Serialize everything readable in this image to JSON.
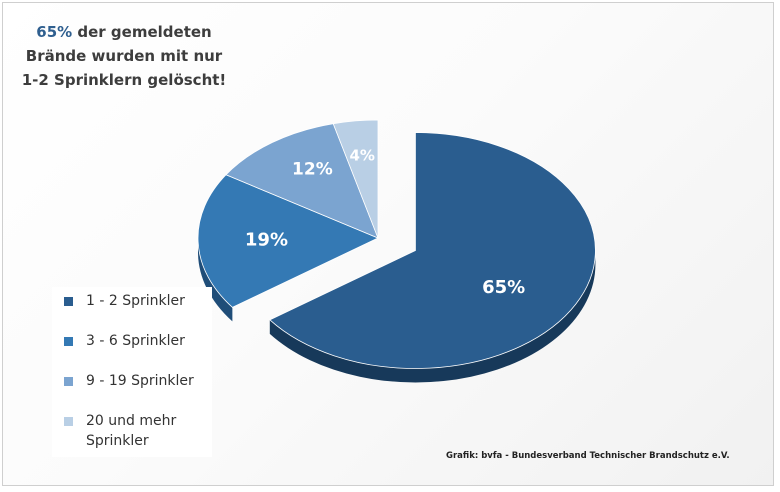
{
  "headline": {
    "accent": "65%",
    "rest": " der gemeldeten Brände wurden mit nur 1-2 Sprinklern gelöscht!"
  },
  "credit": "Grafik: bvfa - Bundesverband Technischer Brandschutz e.V.",
  "chart_data": {
    "type": "pie",
    "title": "",
    "categories": [
      "1 - 2 Sprinkler",
      "3 - 6 Sprinkler",
      "9 - 19 Sprinkler",
      "20 und mehr Sprinkler"
    ],
    "values": [
      65,
      19,
      12,
      4
    ],
    "labels": [
      "65%",
      "19%",
      "12%",
      "4%"
    ],
    "colors": [
      "#2a5d8f",
      "#3479b4",
      "#7ba4d0",
      "#b9cfe5"
    ],
    "side_colors": [
      "#17395a",
      "#1f4d78",
      "#4f78a6",
      "#8ea8c6"
    ],
    "exploded": [
      true,
      false,
      false,
      false
    ],
    "legend_position": "left"
  }
}
